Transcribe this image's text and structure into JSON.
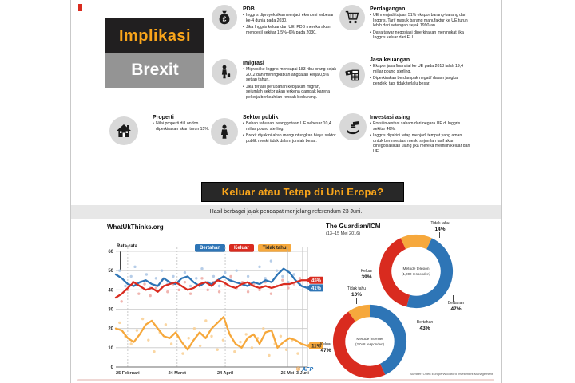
{
  "title": {
    "line1": "Implikasi",
    "line2": "Brexit"
  },
  "sections": {
    "pdb": {
      "heading": "PDB",
      "bullets": [
        "Inggris diproyeksikan menjadi ekonomi terbesar ke-4 dunia pada 2030.",
        "Jika Inggris keluar dari UE, PDB mereka akan mengecil sekitar 1,5%–6% pada 2030."
      ]
    },
    "perdagangan": {
      "heading": "Perdagangan",
      "bullets": [
        "UE menjadi tujuan 51% ekspor barang-barang dari Inggris. Tarif masuk barang manufaktur ke UE turun lebih dari setengah sejak 1990-an.",
        "Daya tawar negosiasi diperkirakan meningkat jika Inggris keluar dari EU."
      ]
    },
    "imigrasi": {
      "heading": "Imigrasi",
      "bullets": [
        "Migrasi ke Inggris mencapai 183 ribu orang sejak 2012 dan meningkatkan angkatan kerja 0,5% setiap tahun.",
        "Jika terjadi perubahan kebijakan migran, sejumlah sektor akan terkena dampak karena pekerja berkeahlian rendah berkurang."
      ]
    },
    "jasa_keuangan": {
      "heading": "Jasa keuangan",
      "bullets": [
        "Ekspor jasa finansial ke UE pada 2013 ialah 19,4 miliar pound sterling.",
        "Diperkirakan berdampak negatif dalam jangka pendek, tapi tidak terlalu besar."
      ]
    },
    "properti": {
      "heading": "Properti",
      "bullets": [
        "Nilai properti di London diperkirakan akan turun 15%."
      ]
    },
    "sektor_publik": {
      "heading": "Sektor publik",
      "bullets": [
        "Beban tahunan keanggotaan UE sebesar 10,4 miliar pound sterling.",
        "Brexit diyakini akan menguntungkan biaya sektor publik meski tidak dalam jumlah besar."
      ]
    },
    "investasi_asing": {
      "heading": "Investasi asing",
      "bullets": [
        "Porsi investasi saham dari negara UE di Inggris sekitar 46%.",
        "Inggris diyakini tetap menjadi tempat yang aman untuk berinvestasi meski sejumlah tarif akan dinegosiasikan ulang jika mereka memilih keluar dari UE."
      ]
    }
  },
  "headline": {
    "question": "Keluar atau Tetap di Uni Eropa?",
    "subtitle": "Hasil berbagai jajak pendapat menjelang referendum 23 Juni."
  },
  "polls": {
    "left_title": "WhatUkThinks.org",
    "average_label": "Rata-rata",
    "right_title": "The Guardian/ICM",
    "right_subtitle": "(13–15 Mei 2016)",
    "afp_copyright": "©",
    "afp_name": "AFP",
    "source": "Sumber: Open Europe/Woodford Investment Management"
  },
  "colors": {
    "remain_blue": "#2e75b6",
    "leave_red": "#d92b1f",
    "unknown_orange": "#f6a83c",
    "accent_yellow": "#f9a51b",
    "panel_black": "#211f20",
    "panel_gray": "#949494"
  },
  "chart_data": [
    {
      "type": "line",
      "title": "WhatUkThinks.org",
      "ylabel": "",
      "xlabel": "",
      "ylim": [
        0,
        65
      ],
      "yticks": [
        0,
        10,
        20,
        30,
        40,
        50,
        60
      ],
      "grid": true,
      "legend_position": "top",
      "xticks": [
        {
          "label": "25 Februari",
          "pos": 0.062,
          "solid": false
        },
        {
          "label": "24 Maret",
          "pos": 0.32,
          "solid": false
        },
        {
          "label": "24 April",
          "pos": 0.571,
          "solid": false
        },
        {
          "label": "25 Mei",
          "pos": 0.896,
          "solid": true
        },
        {
          "label": "3 Juni",
          "pos": 0.975,
          "solid": true
        }
      ],
      "series": [
        {
          "name": "Bertahan",
          "color": "#2e75b6",
          "scatter_color": "#a9c4e4",
          "end_label": "41%",
          "end_value": 41,
          "values": [
            48,
            46,
            43,
            42,
            44,
            45,
            43,
            42,
            46,
            44,
            43,
            46,
            47,
            44,
            42,
            44,
            43,
            45,
            47,
            45,
            44,
            43,
            42,
            44,
            43,
            45,
            44,
            48,
            51,
            49,
            45,
            42,
            41
          ],
          "poll_points": [
            [
              0.02,
              50
            ],
            [
              0.05,
              42
            ],
            [
              0.08,
              47
            ],
            [
              0.1,
              52
            ],
            [
              0.13,
              44
            ],
            [
              0.16,
              48
            ],
            [
              0.18,
              41
            ],
            [
              0.21,
              46
            ],
            [
              0.24,
              50
            ],
            [
              0.27,
              43
            ],
            [
              0.3,
              47
            ],
            [
              0.33,
              44
            ],
            [
              0.36,
              49
            ],
            [
              0.39,
              42
            ],
            [
              0.42,
              46
            ],
            [
              0.45,
              51
            ],
            [
              0.48,
              44
            ],
            [
              0.51,
              47
            ],
            [
              0.54,
              42
            ],
            [
              0.57,
              49
            ],
            [
              0.6,
              45
            ],
            [
              0.63,
              50
            ],
            [
              0.66,
              43
            ],
            [
              0.69,
              47
            ],
            [
              0.72,
              44
            ],
            [
              0.75,
              52
            ],
            [
              0.78,
              46
            ],
            [
              0.81,
              55
            ],
            [
              0.84,
              50
            ],
            [
              0.87,
              47
            ],
            [
              0.9,
              44
            ],
            [
              0.93,
              48
            ],
            [
              0.96,
              43
            ]
          ]
        },
        {
          "name": "Keluar",
          "color": "#d92b1f",
          "scatter_color": "#eda8a2",
          "end_label": "45%",
          "end_value": 45,
          "values": [
            36,
            38,
            41,
            44,
            42,
            40,
            41,
            39,
            42,
            43,
            44,
            42,
            40,
            41,
            43,
            44,
            42,
            45,
            44,
            42,
            41,
            43,
            44,
            42,
            41,
            42,
            41,
            42,
            43,
            43,
            44,
            45,
            45
          ],
          "poll_points": [
            [
              0.03,
              34
            ],
            [
              0.06,
              40
            ],
            [
              0.09,
              44
            ],
            [
              0.12,
              38
            ],
            [
              0.15,
              43
            ],
            [
              0.18,
              37
            ],
            [
              0.21,
              41
            ],
            [
              0.24,
              45
            ],
            [
              0.27,
              39
            ],
            [
              0.3,
              43
            ],
            [
              0.33,
              40
            ],
            [
              0.36,
              44
            ],
            [
              0.39,
              38
            ],
            [
              0.42,
              42
            ],
            [
              0.45,
              46
            ],
            [
              0.48,
              40
            ],
            [
              0.51,
              44
            ],
            [
              0.54,
              39
            ],
            [
              0.57,
              43
            ],
            [
              0.6,
              47
            ],
            [
              0.63,
              41
            ],
            [
              0.66,
              44
            ],
            [
              0.69,
              39
            ],
            [
              0.72,
              43
            ],
            [
              0.75,
              40
            ],
            [
              0.78,
              44
            ],
            [
              0.81,
              38
            ],
            [
              0.84,
              42
            ],
            [
              0.87,
              45
            ],
            [
              0.9,
              41
            ],
            [
              0.93,
              43
            ],
            [
              0.96,
              46
            ]
          ]
        },
        {
          "name": "Tidak tahu",
          "color": "#f6a83c",
          "scatter_color": "#f9cf92",
          "end_label": "11%",
          "end_value": 11,
          "values": [
            20,
            19,
            15,
            13,
            17,
            22,
            24,
            20,
            16,
            15,
            18,
            13,
            9,
            14,
            18,
            15,
            20,
            23,
            26,
            17,
            12,
            10,
            15,
            17,
            12,
            18,
            19,
            10,
            13,
            15,
            14,
            12,
            11
          ],
          "poll_points": [
            [
              0.02,
              23
            ],
            [
              0.05,
              16
            ],
            [
              0.08,
              12
            ],
            [
              0.11,
              19
            ],
            [
              0.14,
              25
            ],
            [
              0.17,
              14
            ],
            [
              0.2,
              8
            ],
            [
              0.23,
              18
            ],
            [
              0.26,
              22
            ],
            [
              0.29,
              12
            ],
            [
              0.32,
              16
            ],
            [
              0.35,
              7
            ],
            [
              0.38,
              15
            ],
            [
              0.41,
              20
            ],
            [
              0.44,
              11
            ],
            [
              0.47,
              24
            ],
            [
              0.5,
              16
            ],
            [
              0.53,
              9
            ],
            [
              0.56,
              14
            ],
            [
              0.59,
              18
            ],
            [
              0.62,
              8
            ],
            [
              0.65,
              13
            ],
            [
              0.68,
              17
            ],
            [
              0.71,
              10
            ],
            [
              0.74,
              15
            ],
            [
              0.77,
              20
            ],
            [
              0.8,
              6
            ],
            [
              0.83,
              12
            ],
            [
              0.86,
              16
            ],
            [
              0.89,
              9
            ],
            [
              0.92,
              14
            ],
            [
              0.95,
              7
            ]
          ]
        }
      ]
    },
    {
      "type": "pie",
      "label": "Metode telepon",
      "sublabel": "(1,002 responden)",
      "rotation_deg": -25,
      "slices": [
        {
          "name": "Tidak tahu",
          "value": 14,
          "pct_label": "14%",
          "color": "#f6a83c"
        },
        {
          "name": "Bertahan",
          "value": 47,
          "pct_label": "47%",
          "color": "#2e75b6"
        },
        {
          "name": "Keluar",
          "value": 39,
          "pct_label": "39%",
          "color": "#d92b1f"
        }
      ]
    },
    {
      "type": "pie",
      "label": "Metode internet",
      "sublabel": "(2,048 responden)",
      "rotation_deg": 0,
      "slices": [
        {
          "name": "Bertahan",
          "value": 43,
          "pct_label": "43%",
          "color": "#2e75b6"
        },
        {
          "name": "Keluar",
          "value": 47,
          "pct_label": "47%",
          "color": "#d92b1f"
        },
        {
          "name": "Tidak tahu",
          "value": 10,
          "pct_label": "10%",
          "color": "#f6a83c"
        }
      ]
    }
  ]
}
